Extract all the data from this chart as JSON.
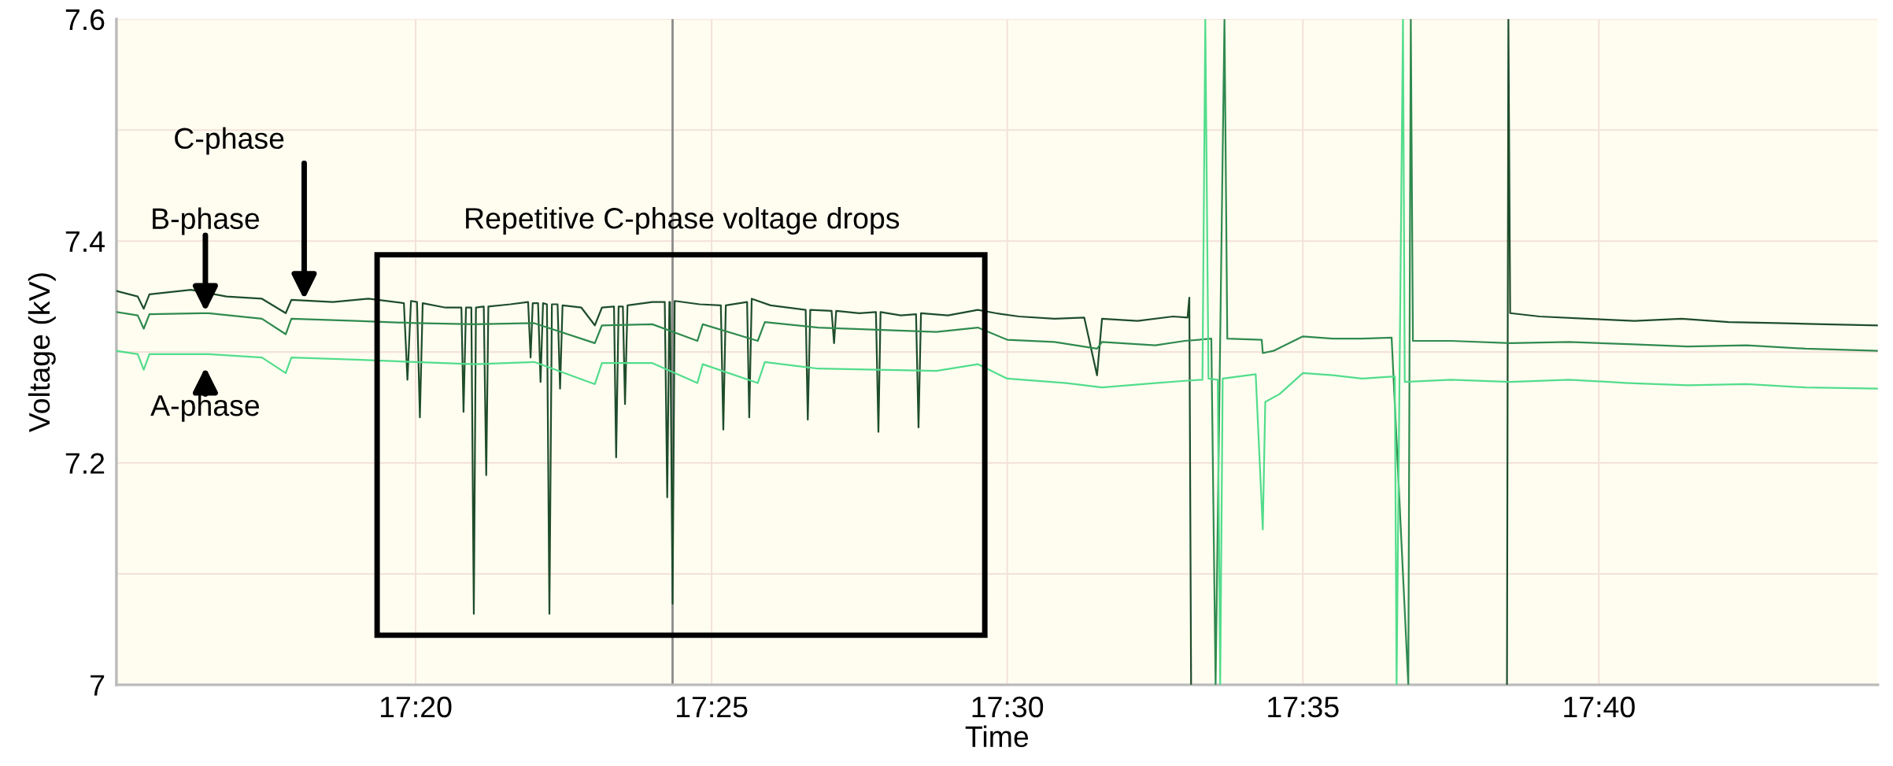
{
  "chart_data": {
    "type": "line",
    "xlabel": "Time",
    "ylabel": "Voltage (kV)",
    "xlim": [
      17.249,
      17.7453
    ],
    "ylim": [
      7.0,
      7.6
    ],
    "xticks": [
      {
        "value": 17.3333,
        "label": "17:20"
      },
      {
        "value": 17.4167,
        "label": "17:25"
      },
      {
        "value": 17.5,
        "label": "17:30"
      },
      {
        "value": 17.5833,
        "label": "17:35"
      },
      {
        "value": 17.6667,
        "label": "17:40"
      }
    ],
    "yticks": [
      7,
      {
        "value": 7.1,
        "label": null
      },
      7.2,
      {
        "value": 7.3,
        "label": null
      },
      7.4,
      {
        "value": 7.5,
        "label": null
      },
      7.6
    ],
    "grid": true,
    "legend": false,
    "marker": "none",
    "line_style": "solid",
    "series": [
      {
        "color": "#1e4d2b",
        "x": [
          17.249,
          17.255,
          17.2567,
          17.2583,
          17.27,
          17.28,
          17.29,
          17.2967,
          17.2983,
          17.31,
          17.32,
          17.33,
          17.331,
          17.332,
          17.3337,
          17.3345,
          17.3353,
          17.3417,
          17.3462,
          17.3468,
          17.3475,
          17.349,
          17.3497,
          17.3503,
          17.3525,
          17.3532,
          17.3538,
          17.36,
          17.365,
          17.3657,
          17.3663,
          17.3678,
          17.3685,
          17.3692,
          17.3703,
          17.371,
          17.3717,
          17.3733,
          17.374,
          17.3747,
          17.38,
          17.3838,
          17.3858,
          17.3892,
          17.3898,
          17.3905,
          17.3917,
          17.3923,
          17.393,
          17.4,
          17.4035,
          17.4042,
          17.4048,
          17.405,
          17.4057,
          17.4063,
          17.4133,
          17.4193,
          17.42,
          17.4207,
          17.4267,
          17.4273,
          17.428,
          17.4333,
          17.4432,
          17.4438,
          17.4445,
          17.4505,
          17.4512,
          17.4518,
          17.4583,
          17.463,
          17.4637,
          17.4643,
          17.47,
          17.4743,
          17.475,
          17.4757,
          17.4833,
          17.4917,
          17.4967,
          17.5033,
          17.5133,
          17.5217,
          17.5253,
          17.5267,
          17.5367,
          17.5467,
          17.5508,
          17.5513,
          17.5518,
          17.5533,
          17.6408,
          17.6412,
          17.6417,
          17.65,
          17.6633,
          17.6767,
          17.69,
          17.7033,
          17.7167,
          17.73,
          17.7453
        ],
        "values": [
          7.355,
          7.35,
          7.339,
          7.352,
          7.356,
          7.35,
          7.348,
          7.335,
          7.347,
          7.345,
          7.348,
          7.344,
          7.275,
          7.346,
          7.345,
          7.241,
          7.344,
          7.34,
          7.34,
          7.246,
          7.34,
          7.34,
          7.064,
          7.34,
          7.341,
          7.189,
          7.341,
          7.343,
          7.345,
          7.295,
          7.344,
          7.344,
          7.273,
          7.344,
          7.343,
          7.064,
          7.343,
          7.343,
          7.267,
          7.342,
          7.34,
          7.324,
          7.34,
          7.341,
          7.205,
          7.341,
          7.341,
          7.253,
          7.342,
          7.345,
          7.345,
          7.169,
          7.345,
          7.345,
          7.073,
          7.346,
          7.343,
          7.342,
          7.23,
          7.342,
          7.345,
          7.241,
          7.348,
          7.342,
          7.338,
          7.239,
          7.338,
          7.337,
          7.308,
          7.337,
          7.335,
          7.336,
          7.228,
          7.336,
          7.333,
          7.334,
          7.232,
          7.335,
          7.333,
          7.338,
          7.335,
          7.332,
          7.33,
          7.331,
          7.279,
          7.33,
          7.328,
          7.332,
          7.331,
          7.349,
          7.0,
          null,
          7.0,
          7.6,
          7.335,
          7.332,
          7.33,
          7.328,
          7.33,
          7.327,
          7.326,
          7.325,
          7.324
        ]
      },
      {
        "color": "#2f8a4f",
        "x": [
          17.249,
          17.255,
          17.2567,
          17.2583,
          17.275,
          17.29,
          17.2967,
          17.2983,
          17.3167,
          17.3333,
          17.35,
          17.3667,
          17.3838,
          17.3858,
          17.4,
          17.4127,
          17.4142,
          17.4297,
          17.4317,
          17.4467,
          17.4633,
          17.48,
          17.4917,
          17.5,
          17.5133,
          17.5253,
          17.5267,
          17.5417,
          17.55,
          17.5575,
          17.5587,
          17.56,
          17.5612,
          17.562,
          17.5717,
          17.572,
          17.575,
          17.5833,
          17.5917,
          17.6,
          17.6083,
          17.613,
          17.6137,
          17.6143,
          17.625,
          17.6417,
          17.6583,
          17.675,
          17.6917,
          17.7083,
          17.725,
          17.7453
        ],
        "values": [
          7.336,
          7.333,
          7.321,
          7.334,
          7.335,
          7.33,
          7.316,
          7.33,
          7.328,
          7.326,
          7.325,
          7.326,
          7.308,
          7.324,
          7.325,
          7.31,
          7.325,
          7.31,
          7.327,
          7.322,
          7.32,
          7.318,
          7.322,
          7.311,
          7.309,
          7.303,
          7.309,
          7.306,
          7.31,
          7.312,
          7.0,
          7.312,
          7.6,
          7.312,
          7.311,
          7.299,
          7.301,
          7.314,
          7.312,
          7.312,
          7.313,
          7.0,
          7.6,
          7.31,
          7.31,
          7.308,
          7.309,
          7.307,
          7.305,
          7.306,
          7.303,
          7.301
        ]
      },
      {
        "color": "#52dd8c",
        "x": [
          17.249,
          17.255,
          17.2567,
          17.2583,
          17.275,
          17.29,
          17.2967,
          17.2983,
          17.3167,
          17.3333,
          17.35,
          17.3667,
          17.3838,
          17.3858,
          17.4,
          17.4127,
          17.4142,
          17.4297,
          17.4317,
          17.4467,
          17.4633,
          17.48,
          17.4917,
          17.5,
          17.5167,
          17.5267,
          17.5417,
          17.55,
          17.555,
          17.5558,
          17.5567,
          17.5593,
          17.56,
          17.5607,
          17.57,
          17.572,
          17.5727,
          17.5767,
          17.5833,
          17.5917,
          17.6,
          17.6092,
          17.6097,
          17.6115,
          17.612,
          17.625,
          17.6417,
          17.6583,
          17.675,
          17.6917,
          17.7083,
          17.725,
          17.7453
        ],
        "values": [
          7.301,
          7.298,
          7.284,
          7.298,
          7.298,
          7.295,
          7.281,
          7.295,
          7.293,
          7.291,
          7.289,
          7.291,
          7.271,
          7.29,
          7.29,
          7.272,
          7.289,
          7.272,
          7.291,
          7.285,
          7.284,
          7.283,
          7.289,
          7.276,
          7.272,
          7.268,
          7.272,
          7.274,
          7.275,
          7.6,
          7.276,
          7.275,
          7.0,
          7.276,
          7.28,
          7.14,
          7.255,
          7.262,
          7.281,
          7.279,
          7.276,
          7.278,
          7.0,
          7.6,
          7.273,
          7.275,
          7.273,
          7.275,
          7.272,
          7.27,
          7.271,
          7.268,
          7.267
        ]
      }
    ],
    "ref_lines": [
      {
        "axis": "x",
        "value": 17.4057,
        "color": "#8a8a8a"
      }
    ],
    "annotations": [
      "C-phase",
      "B-phase",
      "A-phase",
      "Repetitive C-phase voltage drops"
    ]
  }
}
